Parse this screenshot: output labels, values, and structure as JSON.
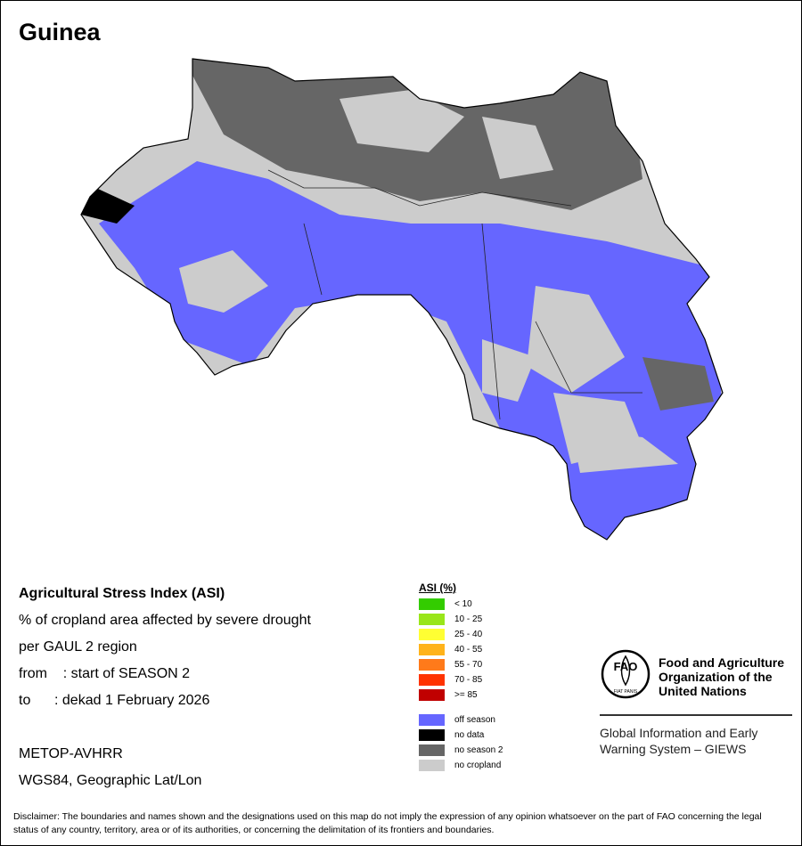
{
  "title": "Guinea",
  "description": {
    "lines": [
      "Agricultural Stress Index (ASI)",
      "% of cropland area affected by severe drought",
      "per GAUL 2 region",
      "from    : start of SEASON 2",
      "to      : dekad 1 February 2026"
    ],
    "sensor": "METOP-AVHRR",
    "projection": "WGS84, Geographic Lat/Lon"
  },
  "legend": {
    "title": "ASI (%)",
    "classes": [
      {
        "label": "< 10",
        "color": "#33cc00"
      },
      {
        "label": "10 - 25",
        "color": "#99e61a"
      },
      {
        "label": "25 - 40",
        "color": "#ffff33"
      },
      {
        "label": "40 - 55",
        "color": "#ffb31a"
      },
      {
        "label": "55 - 70",
        "color": "#ff7a1a"
      },
      {
        "label": "70 - 85",
        "color": "#ff3300"
      },
      {
        "label": ">= 85",
        "color": "#c00000"
      }
    ],
    "other": [
      {
        "label": "off season",
        "color": "#6666ff"
      },
      {
        "label": "no data",
        "color": "#000000"
      },
      {
        "label": "no season 2",
        "color": "#666666"
      },
      {
        "label": "no cropland",
        "color": "#cccccc"
      }
    ]
  },
  "logo": {
    "emblem": "FAO",
    "motto": "FIAT PANIS",
    "organization": "Food and Agriculture Organization of the United Nations",
    "system": "Global Information and Early Warning System – GIEWS"
  },
  "disclaimer": "Disclaimer: The boundaries and names shown and the designations used on this map do not imply the expression of any opinion whatsoever on the part of FAO concerning the legal status of any country, territory, area or of its authorities, or concerning the delimitation of its frontiers and boundaries."
}
